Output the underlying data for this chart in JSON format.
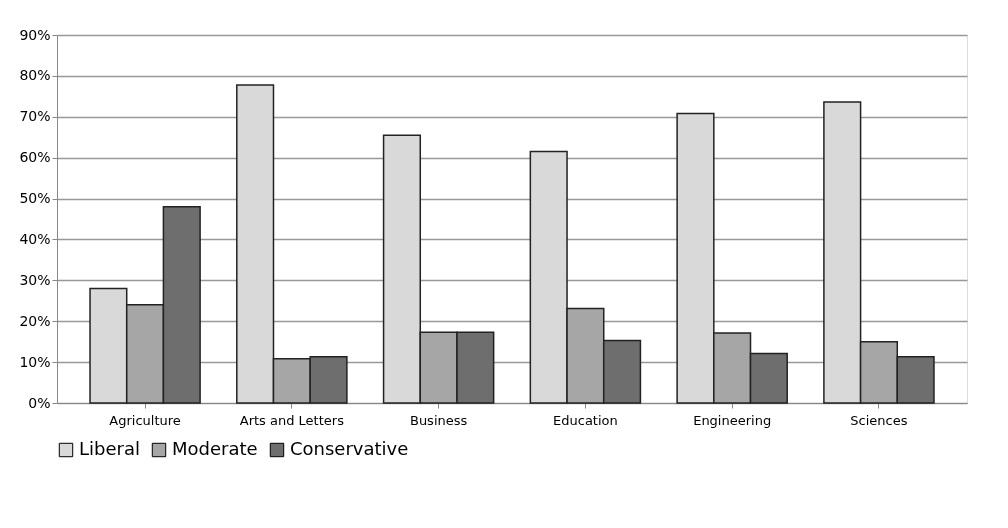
{
  "chart_data": {
    "type": "bar",
    "categories": [
      "Agriculture",
      "Arts and Letters",
      "Business",
      "Education",
      "Engineering",
      "Sciences"
    ],
    "series": [
      {
        "name": "Liberal",
        "color": "#d9d9d9",
        "values": [
          28,
          77.8,
          65.5,
          61.5,
          70.8,
          73.6
        ]
      },
      {
        "name": "Moderate",
        "color": "#a6a6a6",
        "values": [
          24,
          10.8,
          17.3,
          23.1,
          17.1,
          15.0
        ]
      },
      {
        "name": "Conservative",
        "color": "#6e6e6e",
        "values": [
          48,
          11.3,
          17.3,
          15.3,
          12.1,
          11.3
        ]
      }
    ],
    "ylim": [
      0,
      90
    ],
    "yticks": [
      {
        "value": 0,
        "label": "0%"
      },
      {
        "value": 10,
        "label": "10%"
      },
      {
        "value": 20,
        "label": "20%"
      },
      {
        "value": 30,
        "label": "30%"
      },
      {
        "value": 40,
        "label": "40%"
      },
      {
        "value": 50,
        "label": "50%"
      },
      {
        "value": 60,
        "label": "60%"
      },
      {
        "value": 70,
        "label": "70%"
      },
      {
        "value": 80,
        "label": "80%"
      },
      {
        "value": 90,
        "label": "90%"
      }
    ],
    "grid": "y",
    "legend": "bottom"
  }
}
